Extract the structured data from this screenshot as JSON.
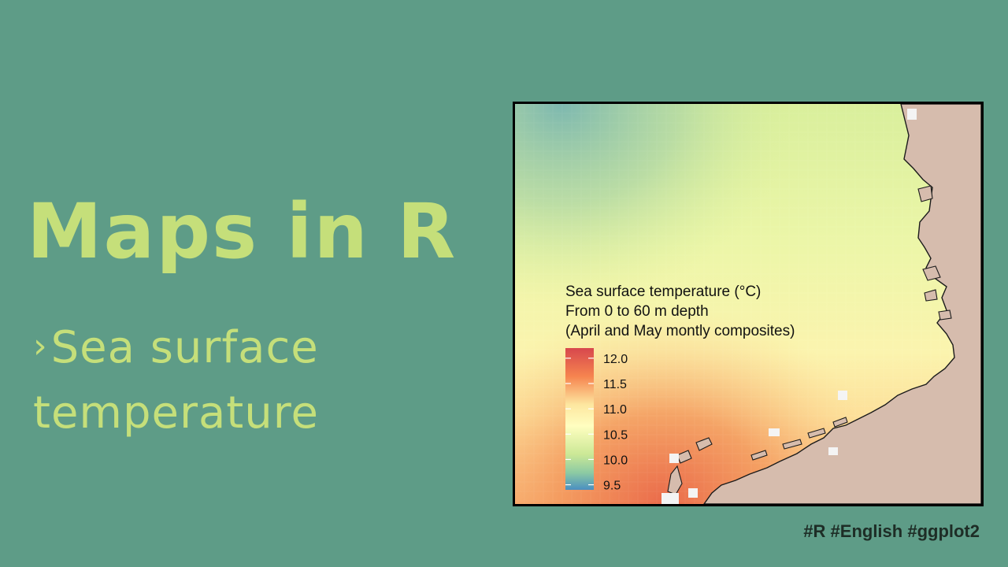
{
  "slide": {
    "title": "Maps in R",
    "subtitle_arrow": "›",
    "subtitle_line1": "Sea surface",
    "subtitle_line2": "temperature",
    "tags": "#R #English #ggplot2"
  },
  "map": {
    "legend_title_lines": [
      "Sea surface temperature (°C)",
      "From 0 to 60 m depth",
      "(April and May montly composites)"
    ],
    "legend_ticks": [
      "12.0",
      "11.5",
      "11.0",
      "10.5",
      "10.0",
      "9.5"
    ],
    "legend_range": [
      9.4,
      12.2
    ],
    "colors": {
      "land": "#d6bcad",
      "low": "#4a8fc1",
      "mid": "#fffec0",
      "high": "#d7474d",
      "frame": "#000000"
    }
  }
}
